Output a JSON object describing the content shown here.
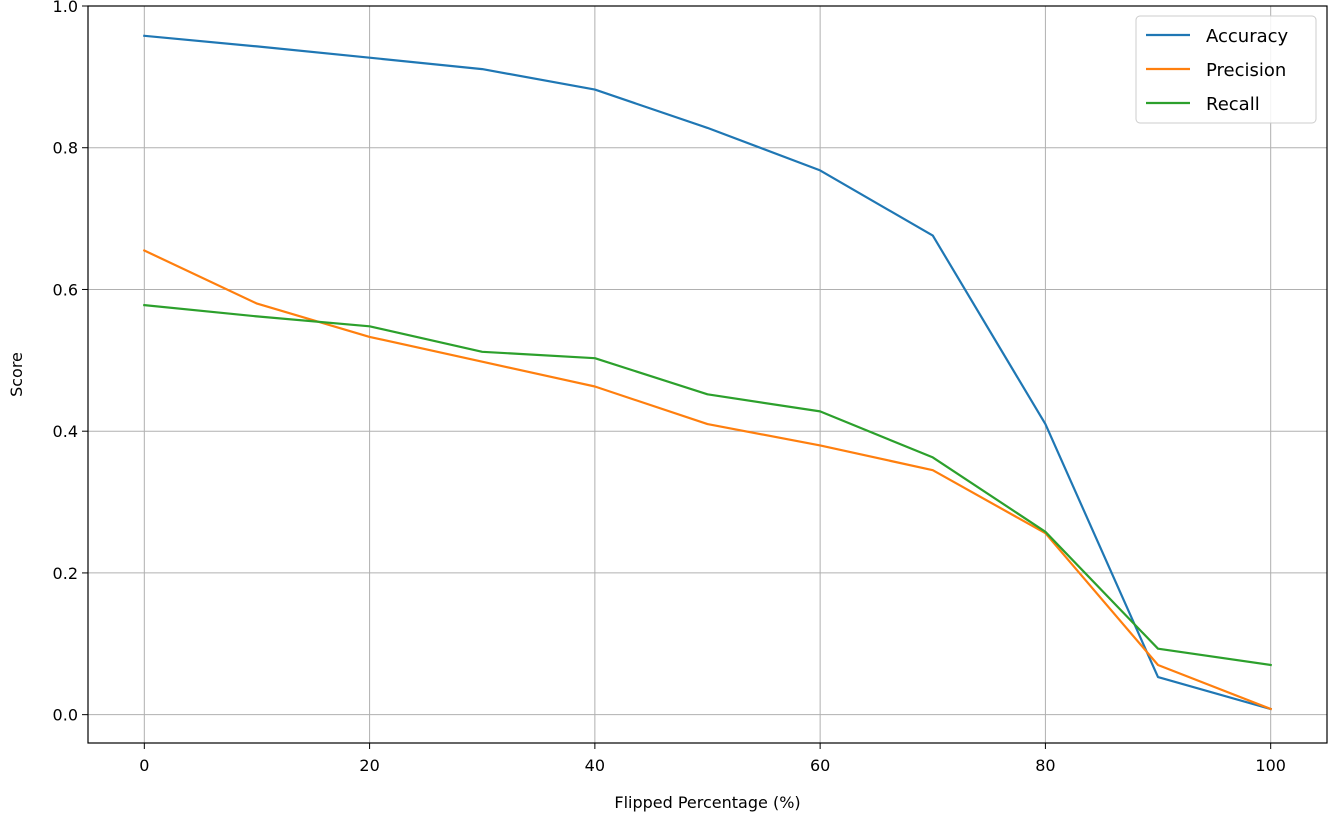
{
  "chart_data": {
    "type": "line",
    "xlabel": "Flipped Percentage (%)",
    "ylabel": "Score",
    "x": [
      0,
      10,
      20,
      30,
      40,
      50,
      60,
      70,
      80,
      90,
      100
    ],
    "xlim": [
      -5,
      105
    ],
    "ylim": [
      -0.04,
      1.0
    ],
    "xticks": [
      0,
      20,
      40,
      60,
      80,
      100
    ],
    "yticks": [
      0.0,
      0.2,
      0.4,
      0.6,
      0.8,
      1.0
    ],
    "xtick_labels": [
      "0",
      "20",
      "40",
      "60",
      "80",
      "100"
    ],
    "ytick_labels": [
      "0.0",
      "0.2",
      "0.4",
      "0.6",
      "0.8",
      "1.0"
    ],
    "grid": true,
    "legend": "top-right",
    "series": [
      {
        "name": "Accuracy",
        "color": "#1f77b4",
        "values": [
          0.958,
          0.943,
          0.927,
          0.911,
          0.882,
          0.828,
          0.768,
          0.676,
          0.41,
          0.053,
          0.008
        ]
      },
      {
        "name": "Precision",
        "color": "#ff7f0e",
        "values": [
          0.655,
          0.58,
          0.533,
          0.498,
          0.463,
          0.41,
          0.38,
          0.345,
          0.256,
          0.07,
          0.008
        ]
      },
      {
        "name": "Recall",
        "color": "#2ca02c",
        "values": [
          0.578,
          0.562,
          0.548,
          0.512,
          0.503,
          0.452,
          0.428,
          0.363,
          0.258,
          0.093,
          0.07
        ]
      }
    ]
  }
}
